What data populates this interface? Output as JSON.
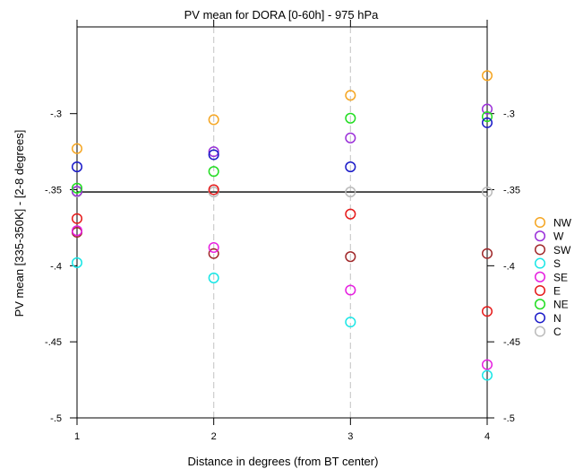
{
  "chart_data": {
    "type": "scatter",
    "title": "PV mean for DORA [0-60h] - 975 hPa",
    "xlabel": "Distance in degrees (from BT center)",
    "ylabel": "PV mean [335-350K] - [2-8 degrees]",
    "xlim": [
      1,
      4
    ],
    "ylim": [
      -0.5,
      -0.243
    ],
    "x_ticks": [
      1,
      2,
      3,
      4
    ],
    "x_tick_labels": [
      "1",
      "2",
      "3",
      "4"
    ],
    "y_ticks": [
      -0.5,
      -0.45,
      -0.4,
      -0.35,
      -0.3
    ],
    "y_tick_labels": [
      "-.5",
      "-.45",
      "-.4",
      "-.35",
      "-.3"
    ],
    "reference_line": -0.3515,
    "vertical_gridlines": [
      2,
      3
    ],
    "legend_position": "right",
    "x": [
      1,
      2,
      3,
      4
    ],
    "series": [
      {
        "name": "NW",
        "color": "#F5A623",
        "values": [
          -0.323,
          -0.304,
          -0.288,
          -0.275
        ]
      },
      {
        "name": "W",
        "color": "#9B30D9",
        "values": [
          -0.351,
          -0.325,
          -0.316,
          -0.297
        ]
      },
      {
        "name": "SW",
        "color": "#A0282A",
        "values": [
          -0.378,
          -0.392,
          -0.394,
          -0.392
        ]
      },
      {
        "name": "S",
        "color": "#1AE6E6",
        "values": [
          -0.398,
          -0.408,
          -0.437,
          -0.472
        ]
      },
      {
        "name": "SE",
        "color": "#E620E0",
        "values": [
          -0.377,
          -0.388,
          -0.416,
          -0.465
        ]
      },
      {
        "name": "E",
        "color": "#E61A1A",
        "values": [
          -0.369,
          -0.35,
          -0.366,
          -0.43
        ]
      },
      {
        "name": "NE",
        "color": "#22DD22",
        "values": [
          -0.349,
          -0.338,
          -0.303,
          -0.302
        ]
      },
      {
        "name": "N",
        "color": "#1A1AC8",
        "values": [
          -0.335,
          -0.327,
          -0.335,
          -0.306
        ]
      },
      {
        "name": "C",
        "color": "#BBBBBB",
        "values": [
          -0.3515,
          -0.3515,
          -0.3515,
          -0.3515
        ]
      }
    ]
  }
}
